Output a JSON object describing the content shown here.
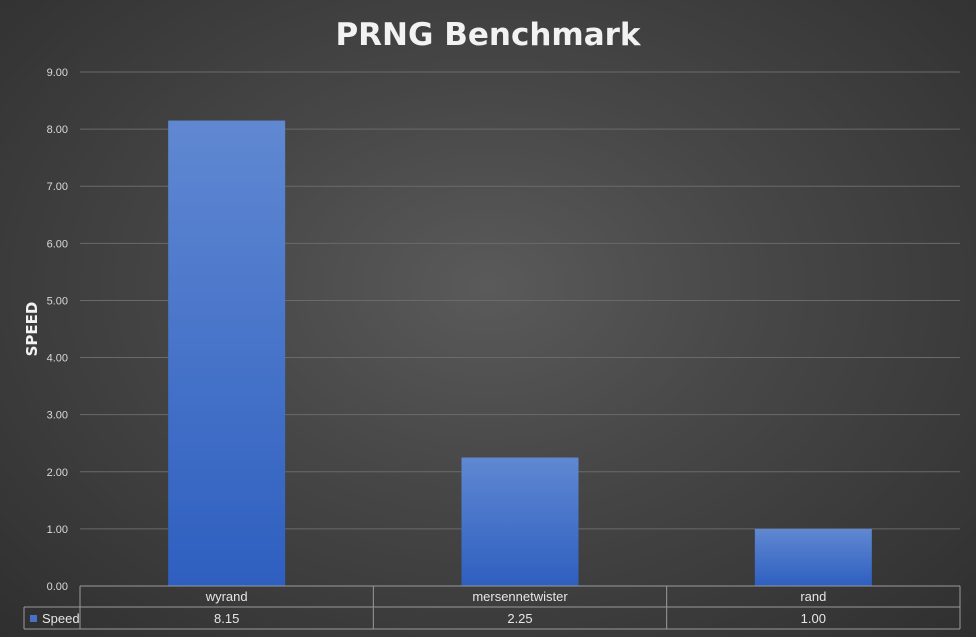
{
  "chart_data": {
    "type": "bar",
    "title": "PRNG Benchmark",
    "xlabel": "",
    "ylabel": "SPEED",
    "categories": [
      "wyrand",
      "mersennetwister",
      "rand"
    ],
    "series": [
      {
        "name": "Speed",
        "values": [
          8.15,
          2.25,
          1.0
        ],
        "display_values": [
          "8.15",
          "2.25",
          "1.00"
        ],
        "color": "#4472c4"
      }
    ],
    "ylim": [
      0,
      9
    ],
    "yticks": [
      "0.00",
      "1.00",
      "2.00",
      "3.00",
      "4.00",
      "5.00",
      "6.00",
      "7.00",
      "8.00",
      "9.00"
    ],
    "grid": true,
    "legend": "data-table",
    "data_table": true
  }
}
